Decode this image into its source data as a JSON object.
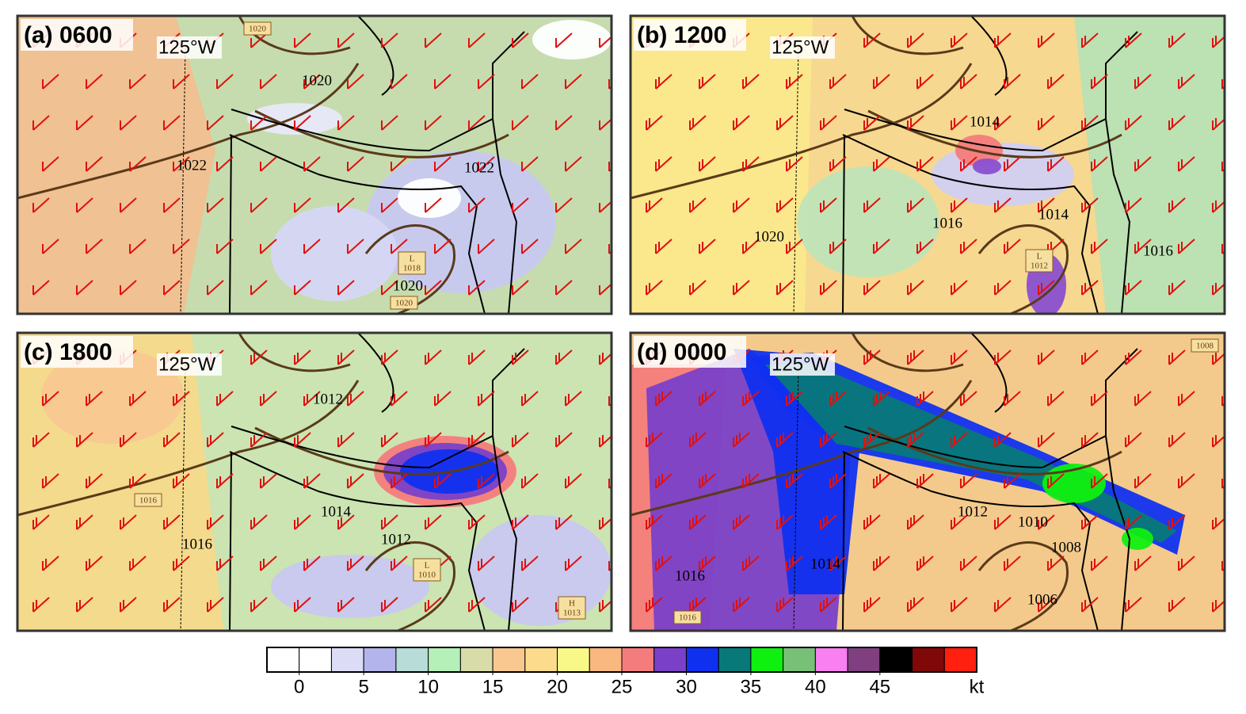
{
  "panels": [
    {
      "label": "(a) 0600",
      "meridian": "125°W",
      "isobar_labels": [
        "1020",
        "1022",
        "1022",
        "1020"
      ],
      "boxed_labels": [
        [
          "1020"
        ],
        [
          "L",
          "1018"
        ],
        [
          "1020"
        ]
      ]
    },
    {
      "label": "(b) 1200",
      "meridian": "125°W",
      "isobar_labels": [
        "1014",
        "1016",
        "1014",
        "1020",
        "1016"
      ],
      "boxed_labels": [
        [
          "L",
          "1012"
        ]
      ]
    },
    {
      "label": "(c) 1800",
      "meridian": "125°W",
      "isobar_labels": [
        "1012",
        "1014",
        "1012",
        "1016"
      ],
      "boxed_labels": [
        [
          "1016"
        ],
        [
          "L",
          "1010"
        ],
        [
          "H",
          "1013"
        ]
      ]
    },
    {
      "label": "(d) 0000",
      "meridian": "125°W",
      "isobar_labels": [
        "1012",
        "1010",
        "1008",
        "1014",
        "1016",
        "1006"
      ],
      "boxed_labels": [
        [
          "1008"
        ],
        [
          "1016"
        ]
      ]
    }
  ],
  "colorbar": {
    "colors": [
      "#ffffff",
      "#ffffff",
      "#dcdcf6",
      "#b4b4ec",
      "#b8dcd8",
      "#b4f0b8",
      "#d8dca8",
      "#f8c890",
      "#fcdc8c",
      "#f8f888",
      "#f8b880",
      "#f47c7c",
      "#7a40c8",
      "#1030f0",
      "#087878",
      "#10f010",
      "#78c078",
      "#f880f0",
      "#804080",
      "#000000",
      "#800808",
      "#ff2010"
    ],
    "lim": [
      -2.5,
      52.5
    ],
    "ticks": [
      0,
      5,
      10,
      15,
      20,
      25,
      30,
      35,
      40,
      45
    ],
    "unit": "kt"
  }
}
